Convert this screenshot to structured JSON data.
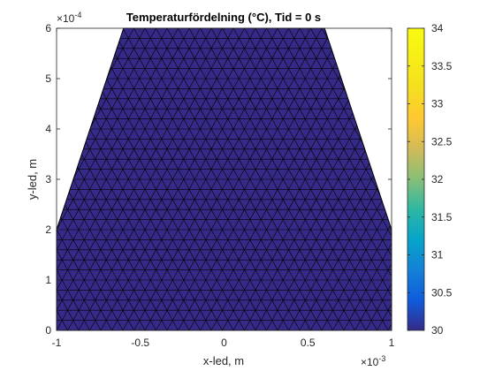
{
  "chart_data": {
    "type": "heatmap",
    "title": "Temperaturfördelning (°C), Tid = 0 s",
    "xlabel": "x-led, m",
    "ylabel": "y-led, m",
    "x_exponent_label": "×10",
    "x_exponent": "-3",
    "y_exponent_label": "×10",
    "y_exponent": "-4",
    "xlim": [
      -1,
      1
    ],
    "ylim": [
      0,
      6
    ],
    "xticks": [
      -1,
      -0.5,
      0,
      0.5,
      1
    ],
    "xtick_labels": [
      "-1",
      "-0.5",
      "0",
      "0.5",
      "1"
    ],
    "yticks": [
      0,
      1,
      2,
      3,
      4,
      5,
      6
    ],
    "ytick_labels": [
      "0",
      "1",
      "2",
      "3",
      "4",
      "5",
      "6"
    ],
    "domain_outline": [
      [
        -1,
        0
      ],
      [
        1,
        0
      ],
      [
        1,
        2
      ],
      [
        0.6,
        6
      ],
      [
        -0.6,
        6
      ],
      [
        -1,
        2
      ]
    ],
    "field_value": 30,
    "colormap": "parula",
    "colorbar": {
      "range": [
        30,
        34
      ],
      "ticks": [
        30,
        30.5,
        31,
        31.5,
        32,
        32.5,
        33,
        33.5,
        34
      ],
      "tick_labels": [
        "30",
        "30.5",
        "31",
        "31.5",
        "32",
        "32.5",
        "33",
        "33.5",
        "34"
      ]
    },
    "grid": false,
    "mesh": "triangular"
  }
}
